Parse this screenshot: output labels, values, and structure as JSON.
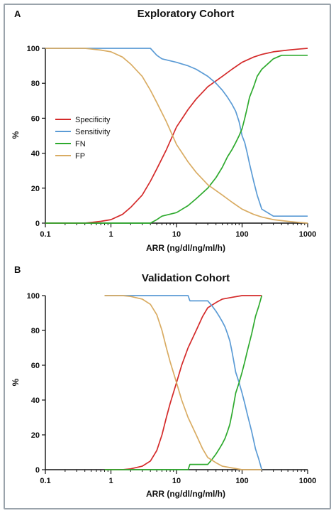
{
  "chart_data": [
    {
      "panel": "A",
      "type": "line",
      "title": "Exploratory Cohort",
      "xlabel": "ARR (ng/dl/ng/ml/h)",
      "ylabel": "%",
      "xscale": "log",
      "xlim": [
        0.1,
        1000
      ],
      "ylim": [
        0,
        100
      ],
      "xticks": [
        "0.1",
        "1",
        "10",
        "100",
        "1000"
      ],
      "yticks": [
        "0",
        "20",
        "40",
        "60",
        "80",
        "100"
      ],
      "legend": "left-middle",
      "series": [
        {
          "name": "Specificity",
          "color": "#d42a2a",
          "x": [
            0.1,
            0.4,
            0.7,
            1,
            1.5,
            2,
            3,
            4,
            5,
            7,
            10,
            15,
            20,
            30,
            50,
            70,
            100,
            150,
            200,
            300,
            500,
            700,
            1000
          ],
          "y": [
            0,
            0,
            1,
            2,
            5,
            9,
            16,
            24,
            31,
            42,
            55,
            65,
            71,
            78,
            84,
            88,
            92,
            95,
            96.5,
            98,
            99,
            99.5,
            100
          ]
        },
        {
          "name": "Sensitivity",
          "color": "#5b9bd5",
          "x": [
            0.1,
            4,
            5,
            6,
            10,
            15,
            20,
            30,
            40,
            50,
            60,
            70,
            80,
            90,
            100,
            110,
            120,
            130,
            150,
            170,
            200,
            300,
            400,
            1000
          ],
          "y": [
            100,
            100,
            96,
            94,
            92,
            90,
            88,
            84,
            80,
            76,
            72,
            68,
            64,
            58,
            50,
            46,
            40,
            34,
            24,
            16,
            8,
            4,
            4,
            4
          ]
        },
        {
          "name": "FN",
          "color": "#2eaa2e",
          "x": [
            0.1,
            4,
            5,
            6,
            10,
            15,
            20,
            30,
            40,
            50,
            60,
            70,
            80,
            90,
            100,
            110,
            120,
            130,
            150,
            170,
            200,
            300,
            400,
            1000
          ],
          "y": [
            0,
            0,
            2,
            4,
            6,
            10,
            14,
            20,
            26,
            32,
            38,
            42,
            46,
            50,
            54,
            60,
            66,
            72,
            78,
            84,
            88,
            94,
            96,
            96
          ]
        },
        {
          "name": "FP",
          "color": "#d9ac63",
          "x": [
            0.1,
            0.4,
            0.7,
            1,
            1.5,
            2,
            3,
            4,
            5,
            7,
            10,
            15,
            20,
            30,
            50,
            70,
            100,
            150,
            200,
            300,
            500,
            700,
            1000
          ],
          "y": [
            100,
            100,
            99,
            98,
            95,
            91,
            84,
            76,
            69,
            58,
            45,
            35,
            29,
            22,
            16,
            12,
            8,
            5,
            3.5,
            2,
            1,
            0.5,
            0
          ]
        }
      ]
    },
    {
      "panel": "B",
      "type": "line",
      "title": "Validation Cohort",
      "xlabel": "ARR (ng/dl/ng/ml/h)",
      "ylabel": "%",
      "xscale": "log",
      "xlim": [
        0.1,
        1000
      ],
      "ylim": [
        0,
        100
      ],
      "xticks": [
        "0.1",
        "1",
        "10",
        "100",
        "1000"
      ],
      "yticks": [
        "0",
        "20",
        "40",
        "60",
        "80",
        "100"
      ],
      "series": [
        {
          "name": "Specificity",
          "color": "#d42a2a",
          "x": [
            0.8,
            1.5,
            2,
            3,
            4,
            5,
            6,
            7,
            8,
            10,
            12,
            15,
            20,
            25,
            30,
            40,
            50,
            70,
            100,
            150,
            200
          ],
          "y": [
            0,
            0,
            0.5,
            2,
            5,
            11,
            20,
            30,
            38,
            50,
            60,
            70,
            80,
            88,
            93,
            96,
            98,
            99,
            100,
            100,
            100
          ]
        },
        {
          "name": "Sensitivity",
          "color": "#5b9bd5",
          "x": [
            0.8,
            15,
            16,
            30,
            35,
            40,
            45,
            50,
            55,
            60,
            65,
            70,
            75,
            80,
            90,
            100,
            110,
            120,
            140,
            160,
            180,
            200
          ],
          "y": [
            100,
            100,
            97,
            97,
            94,
            91,
            88,
            85,
            82,
            78,
            74,
            68,
            62,
            56,
            50,
            44,
            38,
            32,
            22,
            12,
            6,
            0
          ]
        },
        {
          "name": "FN",
          "color": "#2eaa2e",
          "x": [
            0.8,
            15,
            16,
            30,
            35,
            40,
            45,
            50,
            55,
            60,
            65,
            70,
            75,
            80,
            90,
            100,
            110,
            120,
            140,
            160,
            180,
            200
          ],
          "y": [
            0,
            0,
            3,
            3,
            6,
            9,
            12,
            15,
            18,
            22,
            26,
            32,
            38,
            44,
            50,
            56,
            62,
            68,
            78,
            88,
            94,
            100
          ]
        },
        {
          "name": "FP",
          "color": "#d9ac63",
          "x": [
            0.8,
            1.5,
            2,
            3,
            4,
            5,
            6,
            7,
            8,
            10,
            12,
            15,
            20,
            25,
            30,
            40,
            50,
            70,
            100,
            150,
            200
          ],
          "y": [
            100,
            100,
            99.5,
            98,
            95,
            89,
            80,
            70,
            62,
            50,
            40,
            30,
            20,
            12,
            7,
            4,
            2,
            1,
            0,
            0,
            0
          ]
        }
      ]
    }
  ]
}
